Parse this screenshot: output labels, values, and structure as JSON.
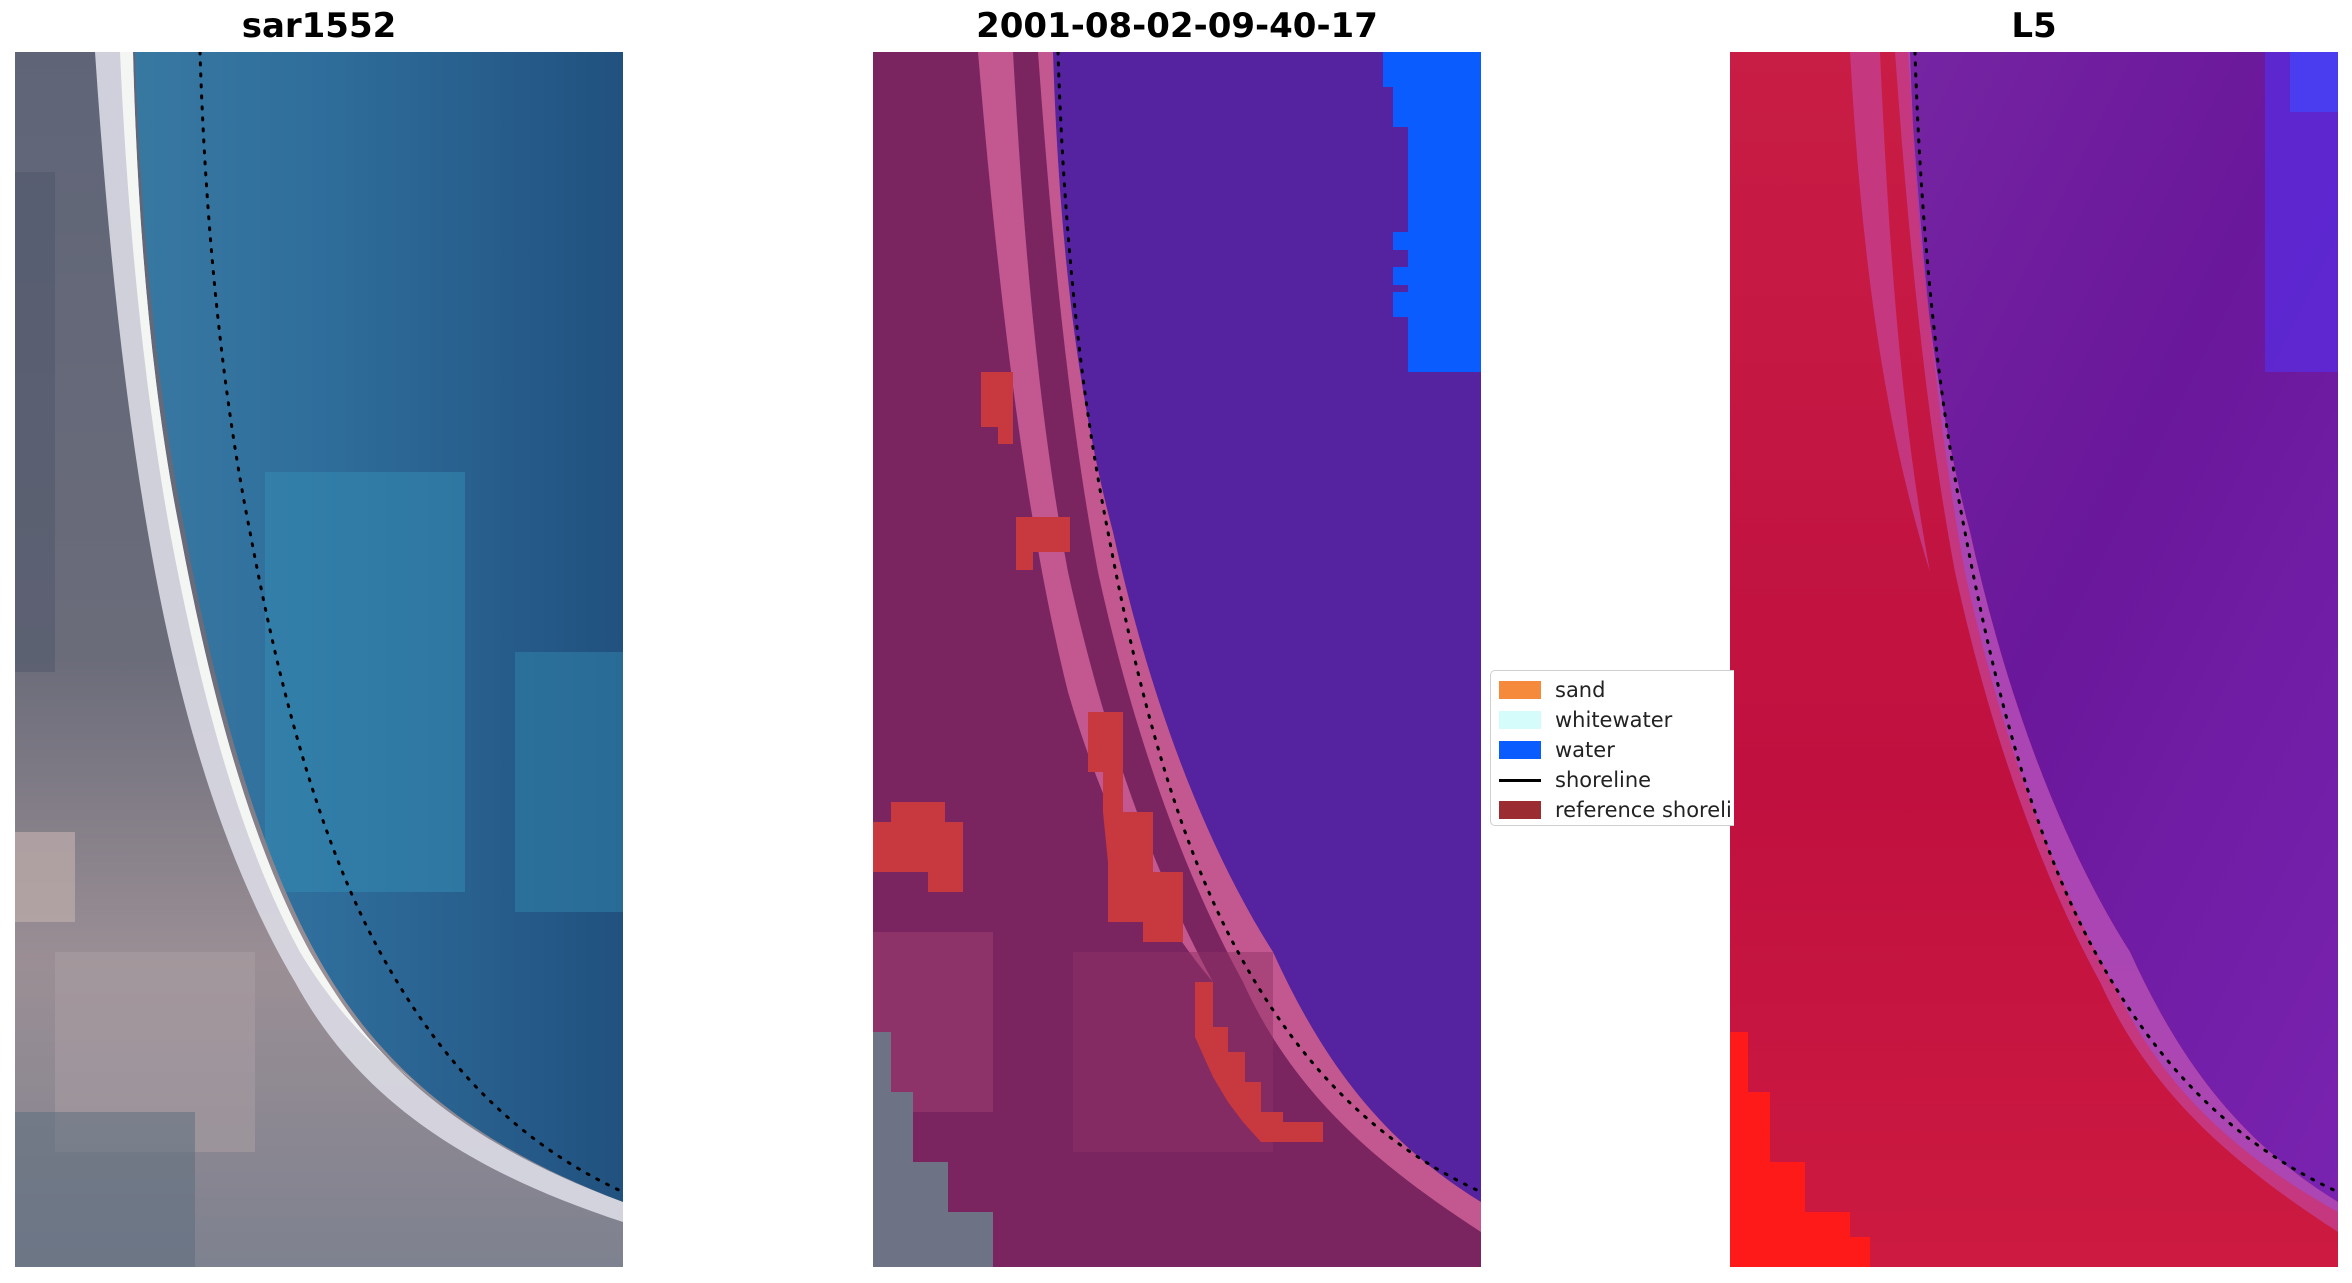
{
  "panels": {
    "left_title": "sar1552",
    "middle_title": "2001-08-02-09-40-17",
    "right_title": "L5"
  },
  "legend": {
    "items": [
      {
        "label": "sand",
        "color": "#f58a3d",
        "kind": "patch"
      },
      {
        "label": "whitewater",
        "color": "#d6fbfb",
        "kind": "patch"
      },
      {
        "label": "water",
        "color": "#0a5cff",
        "kind": "patch"
      },
      {
        "label": "shoreline",
        "color": "#000000",
        "kind": "line"
      },
      {
        "label": "reference shoreli",
        "color": "#9b2c32",
        "kind": "patch"
      }
    ]
  },
  "colors": {
    "water_class": "#5522a0",
    "land_class": "#8a2560",
    "beach_class": "#c2588f",
    "reference_shoreline": "#c8383f",
    "prob_land": "#c8123e",
    "prob_water": "#6b169c",
    "prob_high": "#ff1a1a"
  }
}
